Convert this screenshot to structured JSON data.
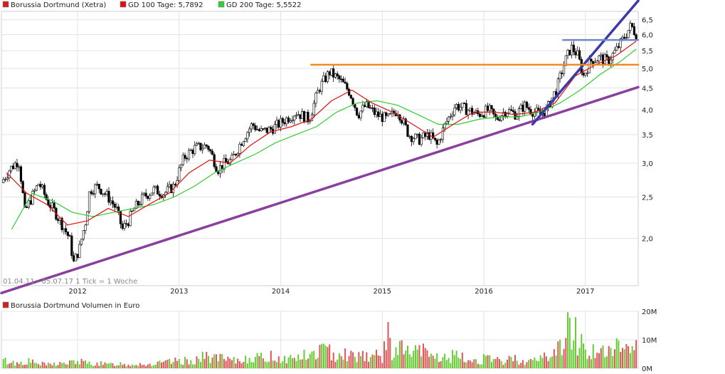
{
  "legend": {
    "main": {
      "label": "Borussia Dortmund (Xetra)",
      "color": "#cc2222"
    },
    "sma100": {
      "label": "GD 100 Tage: 5,7892",
      "color": "#dd1111"
    },
    "sma200": {
      "label": "GD 200 Tage: 5,5522",
      "color": "#33cc33"
    },
    "volume": {
      "label": "Borussia Dortmund Volumen in Euro",
      "color": "#cc2222"
    }
  },
  "footer_text": "01.04.11 - 05.07.17   1 Tick = 1 Woche",
  "chart_data": [
    {
      "type": "candlestick",
      "title": "Borussia Dortmund (Xetra)",
      "x_ticks": [
        "2012",
        "2013",
        "2014",
        "2015",
        "2016",
        "2017"
      ],
      "y_ticks": [
        "2,0",
        "2,5",
        "3,0",
        "3,5",
        "4,0",
        "4,5",
        "5,0",
        "5,5",
        "6,0",
        "6,5"
      ],
      "y_scale": "log",
      "ylim": [
        1.55,
        6.8
      ],
      "xlim": [
        2011.25,
        2017.52
      ],
      "grid": true,
      "close_points": [
        [
          2011.25,
          2.7
        ],
        [
          2011.33,
          2.9
        ],
        [
          2011.42,
          3.05
        ],
        [
          2011.48,
          2.3
        ],
        [
          2011.55,
          2.5
        ],
        [
          2011.62,
          2.7
        ],
        [
          2011.7,
          2.45
        ],
        [
          2011.78,
          2.3
        ],
        [
          2011.85,
          2.15
        ],
        [
          2011.92,
          2.0
        ],
        [
          2011.96,
          1.75
        ],
        [
          2012.02,
          1.9
        ],
        [
          2012.08,
          2.2
        ],
        [
          2012.12,
          2.6
        ],
        [
          2012.2,
          2.65
        ],
        [
          2012.3,
          2.5
        ],
        [
          2012.38,
          2.35
        ],
        [
          2012.44,
          2.1
        ],
        [
          2012.5,
          2.2
        ],
        [
          2012.56,
          2.35
        ],
        [
          2012.65,
          2.5
        ],
        [
          2012.75,
          2.6
        ],
        [
          2012.85,
          2.55
        ],
        [
          2012.95,
          2.65
        ],
        [
          2013.05,
          3.1
        ],
        [
          2013.15,
          3.25
        ],
        [
          2013.28,
          3.3
        ],
        [
          2013.38,
          2.9
        ],
        [
          2013.45,
          3.0
        ],
        [
          2013.52,
          3.05
        ],
        [
          2013.62,
          3.4
        ],
        [
          2013.72,
          3.7
        ],
        [
          2013.8,
          3.55
        ],
        [
          2013.9,
          3.6
        ],
        [
          2013.98,
          3.7
        ],
        [
          2014.05,
          3.8
        ],
        [
          2014.15,
          3.95
        ],
        [
          2014.28,
          3.8
        ],
        [
          2014.38,
          4.5
        ],
        [
          2014.48,
          4.9
        ],
        [
          2014.58,
          4.7
        ],
        [
          2014.68,
          4.4
        ],
        [
          2014.76,
          3.9
        ],
        [
          2014.84,
          4.1
        ],
        [
          2014.94,
          3.9
        ],
        [
          2015.05,
          3.8
        ],
        [
          2015.15,
          4.0
        ],
        [
          2015.26,
          3.5
        ],
        [
          2015.36,
          3.4
        ],
        [
          2015.46,
          3.5
        ],
        [
          2015.54,
          3.3
        ],
        [
          2015.62,
          3.7
        ],
        [
          2015.72,
          4.1
        ],
        [
          2015.84,
          4.0
        ],
        [
          2015.94,
          3.9
        ],
        [
          2016.05,
          4.0
        ],
        [
          2016.12,
          3.8
        ],
        [
          2016.22,
          4.0
        ],
        [
          2016.32,
          3.9
        ],
        [
          2016.4,
          4.1
        ],
        [
          2016.46,
          4.0
        ],
        [
          2016.55,
          3.9
        ],
        [
          2016.62,
          4.0
        ],
        [
          2016.72,
          4.5
        ],
        [
          2016.8,
          5.2
        ],
        [
          2016.86,
          5.6
        ],
        [
          2016.92,
          5.4
        ],
        [
          2016.98,
          4.8
        ],
        [
          2017.05,
          5.2
        ],
        [
          2017.14,
          5.3
        ],
        [
          2017.22,
          5.2
        ],
        [
          2017.3,
          5.5
        ],
        [
          2017.38,
          5.9
        ],
        [
          2017.45,
          6.3
        ],
        [
          2017.5,
          6.0
        ]
      ],
      "sma100_points": [
        [
          2011.3,
          2.85
        ],
        [
          2011.5,
          2.55
        ],
        [
          2011.7,
          2.4
        ],
        [
          2011.9,
          2.15
        ],
        [
          2012.1,
          2.2
        ],
        [
          2012.3,
          2.35
        ],
        [
          2012.5,
          2.25
        ],
        [
          2012.7,
          2.4
        ],
        [
          2012.9,
          2.55
        ],
        [
          2013.1,
          2.85
        ],
        [
          2013.3,
          3.05
        ],
        [
          2013.5,
          3.0
        ],
        [
          2013.7,
          3.3
        ],
        [
          2013.9,
          3.55
        ],
        [
          2014.1,
          3.65
        ],
        [
          2014.3,
          3.8
        ],
        [
          2014.5,
          4.2
        ],
        [
          2014.7,
          4.45
        ],
        [
          2014.9,
          4.15
        ],
        [
          2015.1,
          3.95
        ],
        [
          2015.3,
          3.7
        ],
        [
          2015.5,
          3.45
        ],
        [
          2015.7,
          3.7
        ],
        [
          2015.9,
          3.95
        ],
        [
          2016.1,
          3.95
        ],
        [
          2016.3,
          3.9
        ],
        [
          2016.5,
          3.95
        ],
        [
          2016.7,
          4.15
        ],
        [
          2016.9,
          4.8
        ],
        [
          2017.1,
          5.1
        ],
        [
          2017.3,
          5.35
        ],
        [
          2017.5,
          5.79
        ]
      ],
      "sma200_points": [
        [
          2011.35,
          2.1
        ],
        [
          2011.55,
          2.55
        ],
        [
          2011.75,
          2.45
        ],
        [
          2011.95,
          2.3
        ],
        [
          2012.15,
          2.25
        ],
        [
          2012.35,
          2.3
        ],
        [
          2012.55,
          2.35
        ],
        [
          2012.75,
          2.4
        ],
        [
          2012.95,
          2.5
        ],
        [
          2013.15,
          2.65
        ],
        [
          2013.35,
          2.85
        ],
        [
          2013.55,
          3.0
        ],
        [
          2013.75,
          3.15
        ],
        [
          2013.95,
          3.35
        ],
        [
          2014.15,
          3.5
        ],
        [
          2014.35,
          3.65
        ],
        [
          2014.55,
          3.95
        ],
        [
          2014.75,
          4.15
        ],
        [
          2014.95,
          4.2
        ],
        [
          2015.15,
          4.1
        ],
        [
          2015.35,
          3.9
        ],
        [
          2015.55,
          3.7
        ],
        [
          2015.75,
          3.7
        ],
        [
          2015.95,
          3.8
        ],
        [
          2016.15,
          3.85
        ],
        [
          2016.35,
          3.85
        ],
        [
          2016.55,
          3.95
        ],
        [
          2016.75,
          4.15
        ],
        [
          2016.95,
          4.45
        ],
        [
          2017.15,
          4.85
        ],
        [
          2017.35,
          5.2
        ],
        [
          2017.5,
          5.55
        ]
      ],
      "trendlines": [
        {
          "name": "purple-trendline",
          "color": "#8a3f9f",
          "from": [
            2011.25,
            1.49
          ],
          "to": [
            2017.52,
            4.52
          ]
        },
        {
          "name": "blue-trendline",
          "color": "#3a3aaa",
          "from": [
            2016.48,
            3.7
          ],
          "to": [
            2017.52,
            7.2
          ]
        },
        {
          "name": "orange-resistance",
          "color": "#f08a24",
          "from": [
            2014.3,
            5.1
          ],
          "to": [
            2017.52,
            5.1
          ]
        },
        {
          "name": "steelblue-resistance",
          "color": "#6f86c9",
          "from": [
            2016.78,
            5.83
          ],
          "to": [
            2017.52,
            5.83
          ]
        }
      ]
    },
    {
      "type": "bar",
      "title": "Borussia Dortmund Volumen in Euro",
      "y_ticks": [
        "0M",
        "10M",
        "20M"
      ],
      "ylim": [
        0,
        20
      ],
      "volume_points": [
        [
          2011.3,
          3
        ],
        [
          2011.4,
          2
        ],
        [
          2011.5,
          3
        ],
        [
          2011.6,
          2
        ],
        [
          2011.7,
          1.5
        ],
        [
          2011.8,
          2
        ],
        [
          2011.9,
          2
        ],
        [
          2012.0,
          3
        ],
        [
          2012.1,
          2
        ],
        [
          2012.2,
          2
        ],
        [
          2012.3,
          1.5
        ],
        [
          2012.4,
          2
        ],
        [
          2012.5,
          1.5
        ],
        [
          2012.6,
          2
        ],
        [
          2012.7,
          1.5
        ],
        [
          2012.8,
          2
        ],
        [
          2012.9,
          2.5
        ],
        [
          2013.0,
          3
        ],
        [
          2013.1,
          3
        ],
        [
          2013.2,
          4
        ],
        [
          2013.3,
          5
        ],
        [
          2013.4,
          4
        ],
        [
          2013.5,
          3
        ],
        [
          2013.6,
          3
        ],
        [
          2013.7,
          5
        ],
        [
          2013.8,
          4
        ],
        [
          2013.9,
          5
        ],
        [
          2014.0,
          4
        ],
        [
          2014.1,
          4
        ],
        [
          2014.2,
          5
        ],
        [
          2014.3,
          5
        ],
        [
          2014.4,
          8
        ],
        [
          2014.5,
          6
        ],
        [
          2014.6,
          7
        ],
        [
          2014.7,
          5
        ],
        [
          2014.8,
          6
        ],
        [
          2014.9,
          5
        ],
        [
          2015.0,
          5
        ],
        [
          2015.05,
          13
        ],
        [
          2015.1,
          7
        ],
        [
          2015.2,
          8
        ],
        [
          2015.3,
          6
        ],
        [
          2015.4,
          7
        ],
        [
          2015.5,
          5
        ],
        [
          2015.6,
          4
        ],
        [
          2015.7,
          5
        ],
        [
          2015.8,
          4
        ],
        [
          2015.9,
          3
        ],
        [
          2016.0,
          4
        ],
        [
          2016.1,
          3
        ],
        [
          2016.2,
          3
        ],
        [
          2016.3,
          4
        ],
        [
          2016.4,
          3
        ],
        [
          2016.5,
          3
        ],
        [
          2016.6,
          5
        ],
        [
          2016.7,
          6
        ],
        [
          2016.75,
          9
        ],
        [
          2016.82,
          15
        ],
        [
          2016.88,
          17
        ],
        [
          2016.94,
          11
        ],
        [
          2017.0,
          8
        ],
        [
          2017.1,
          7
        ],
        [
          2017.2,
          6
        ],
        [
          2017.3,
          8
        ],
        [
          2017.4,
          10
        ],
        [
          2017.48,
          9
        ]
      ]
    }
  ]
}
